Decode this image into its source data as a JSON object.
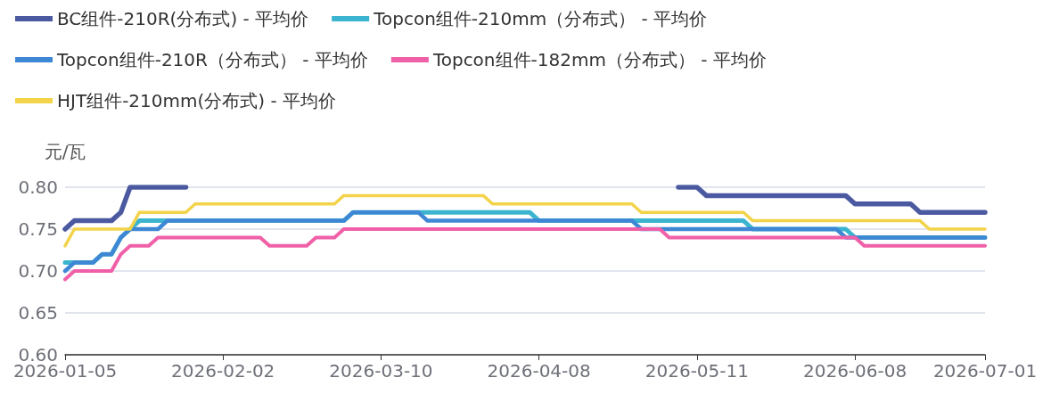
{
  "chart_data": {
    "type": "line",
    "ylabel": "元/瓦",
    "categories": [
      "2026-01-05",
      null,
      null,
      null,
      null,
      null,
      null,
      null,
      null,
      null,
      null,
      null,
      null,
      null,
      null,
      null,
      null,
      "2026-02-02",
      null,
      null,
      null,
      null,
      null,
      null,
      null,
      null,
      null,
      null,
      null,
      null,
      null,
      null,
      null,
      null,
      "2026-03-10",
      null,
      null,
      null,
      null,
      null,
      null,
      null,
      null,
      null,
      null,
      null,
      null,
      null,
      null,
      null,
      null,
      "2026-04-08",
      null,
      null,
      null,
      null,
      null,
      null,
      null,
      null,
      null,
      null,
      null,
      null,
      null,
      null,
      null,
      null,
      "2026-05-11",
      null,
      null,
      null,
      null,
      null,
      null,
      null,
      null,
      null,
      null,
      null,
      null,
      null,
      null,
      null,
      null,
      "2026-06-08",
      null,
      null,
      null,
      null,
      null,
      null,
      null,
      null,
      null,
      null,
      null,
      null,
      null,
      "2026-07-01"
    ],
    "series": [
      {
        "name": "BC组件-210R(分布式) - 平均价",
        "color": "#4b5aa0",
        "values": [
          0.75,
          0.76,
          0.76,
          0.76,
          0.76,
          0.76,
          0.77,
          0.8,
          0.8,
          0.8,
          0.8,
          0.8,
          0.8,
          0.8,
          null,
          null,
          null,
          null,
          null,
          null,
          null,
          null,
          null,
          null,
          null,
          null,
          null,
          null,
          null,
          null,
          null,
          null,
          null,
          null,
          null,
          null,
          null,
          null,
          null,
          null,
          null,
          null,
          null,
          null,
          null,
          null,
          null,
          null,
          null,
          null,
          null,
          null,
          null,
          null,
          null,
          null,
          null,
          null,
          null,
          null,
          null,
          null,
          null,
          null,
          null,
          null,
          0.8,
          0.8,
          0.8,
          0.79,
          0.79,
          0.79,
          0.79,
          0.79,
          0.79,
          0.79,
          0.79,
          0.79,
          0.79,
          0.79,
          0.79,
          0.79,
          0.79,
          0.79,
          0.79,
          0.78,
          0.78,
          0.78,
          0.78,
          0.78,
          0.78,
          0.78,
          0.77,
          0.77,
          0.77,
          0.77,
          0.77,
          0.77,
          0.77,
          0.77
        ]
      },
      {
        "name": "Topcon组件-210mm（分布式） - 平均价",
        "color": "#3bb4cf",
        "values": [
          0.71,
          0.71,
          0.71,
          0.71,
          0.72,
          0.72,
          0.74,
          0.75,
          0.76,
          0.76,
          0.76,
          0.76,
          0.76,
          0.76,
          0.76,
          0.76,
          0.76,
          0.76,
          0.76,
          0.76,
          0.76,
          0.76,
          0.76,
          0.76,
          0.76,
          0.76,
          0.76,
          0.76,
          0.76,
          0.76,
          0.76,
          0.77,
          0.77,
          0.77,
          0.77,
          0.77,
          0.77,
          0.77,
          0.77,
          0.77,
          0.77,
          0.77,
          0.77,
          0.77,
          0.77,
          0.77,
          0.77,
          0.77,
          0.77,
          0.77,
          0.77,
          0.76,
          0.76,
          0.76,
          0.76,
          0.76,
          0.76,
          0.76,
          0.76,
          0.76,
          0.76,
          0.76,
          0.76,
          0.76,
          0.76,
          0.76,
          0.76,
          0.76,
          0.76,
          0.76,
          0.76,
          0.76,
          0.76,
          0.76,
          0.75,
          0.75,
          0.75,
          0.75,
          0.75,
          0.75,
          0.75,
          0.75,
          0.75,
          0.75,
          0.75,
          0.74,
          0.74,
          0.74,
          0.74,
          0.74,
          0.74,
          0.74,
          0.74,
          0.74,
          0.74,
          0.74,
          0.74,
          0.74,
          0.74,
          0.74
        ]
      },
      {
        "name": "Topcon组件-210R（分布式） - 平均价",
        "color": "#3e87d4",
        "values": [
          0.7,
          0.71,
          0.71,
          0.71,
          0.72,
          0.72,
          0.74,
          0.75,
          0.75,
          0.75,
          0.75,
          0.76,
          0.76,
          0.76,
          0.76,
          0.76,
          0.76,
          0.76,
          0.76,
          0.76,
          0.76,
          0.76,
          0.76,
          0.76,
          0.76,
          0.76,
          0.76,
          0.76,
          0.76,
          0.76,
          0.76,
          0.77,
          0.77,
          0.77,
          0.77,
          0.77,
          0.77,
          0.77,
          0.77,
          0.76,
          0.76,
          0.76,
          0.76,
          0.76,
          0.76,
          0.76,
          0.76,
          0.76,
          0.76,
          0.76,
          0.76,
          0.76,
          0.76,
          0.76,
          0.76,
          0.76,
          0.76,
          0.76,
          0.76,
          0.76,
          0.76,
          0.76,
          0.75,
          0.75,
          0.75,
          0.75,
          0.75,
          0.75,
          0.75,
          0.75,
          0.75,
          0.75,
          0.75,
          0.75,
          0.75,
          0.75,
          0.75,
          0.75,
          0.75,
          0.75,
          0.75,
          0.75,
          0.75,
          0.75,
          0.74,
          0.74,
          0.74,
          0.74,
          0.74,
          0.74,
          0.74,
          0.74,
          0.74,
          0.74,
          0.74,
          0.74,
          0.74,
          0.74,
          0.74,
          0.74
        ]
      },
      {
        "name": "Topcon组件-182mm（分布式） - 平均价",
        "color": "#f060a8",
        "values": [
          0.69,
          0.7,
          0.7,
          0.7,
          0.7,
          0.7,
          0.72,
          0.73,
          0.73,
          0.73,
          0.74,
          0.74,
          0.74,
          0.74,
          0.74,
          0.74,
          0.74,
          0.74,
          0.74,
          0.74,
          0.74,
          0.74,
          0.73,
          0.73,
          0.73,
          0.73,
          0.73,
          0.74,
          0.74,
          0.74,
          0.75,
          0.75,
          0.75,
          0.75,
          0.75,
          0.75,
          0.75,
          0.75,
          0.75,
          0.75,
          0.75,
          0.75,
          0.75,
          0.75,
          0.75,
          0.75,
          0.75,
          0.75,
          0.75,
          0.75,
          0.75,
          0.75,
          0.75,
          0.75,
          0.75,
          0.75,
          0.75,
          0.75,
          0.75,
          0.75,
          0.75,
          0.75,
          0.75,
          0.75,
          0.75,
          0.74,
          0.74,
          0.74,
          0.74,
          0.74,
          0.74,
          0.74,
          0.74,
          0.74,
          0.74,
          0.74,
          0.74,
          0.74,
          0.74,
          0.74,
          0.74,
          0.74,
          0.74,
          0.74,
          0.74,
          0.74,
          0.73,
          0.73,
          0.73,
          0.73,
          0.73,
          0.73,
          0.73,
          0.73,
          0.73,
          0.73,
          0.73,
          0.73,
          0.73,
          0.73
        ]
      },
      {
        "name": "HJT组件-210mm(分布式) - 平均价",
        "color": "#f3d34a",
        "values": [
          0.73,
          0.75,
          0.75,
          0.75,
          0.75,
          0.75,
          0.75,
          0.75,
          0.77,
          0.77,
          0.77,
          0.77,
          0.77,
          0.77,
          0.78,
          0.78,
          0.78,
          0.78,
          0.78,
          0.78,
          0.78,
          0.78,
          0.78,
          0.78,
          0.78,
          0.78,
          0.78,
          0.78,
          0.78,
          0.78,
          0.79,
          0.79,
          0.79,
          0.79,
          0.79,
          0.79,
          0.79,
          0.79,
          0.79,
          0.79,
          0.79,
          0.79,
          0.79,
          0.79,
          0.79,
          0.79,
          0.78,
          0.78,
          0.78,
          0.78,
          0.78,
          0.78,
          0.78,
          0.78,
          0.78,
          0.78,
          0.78,
          0.78,
          0.78,
          0.78,
          0.78,
          0.78,
          0.77,
          0.77,
          0.77,
          0.77,
          0.77,
          0.77,
          0.77,
          0.77,
          0.77,
          0.77,
          0.77,
          0.77,
          0.76,
          0.76,
          0.76,
          0.76,
          0.76,
          0.76,
          0.76,
          0.76,
          0.76,
          0.76,
          0.76,
          0.76,
          0.76,
          0.76,
          0.76,
          0.76,
          0.76,
          0.76,
          0.76,
          0.75,
          0.75,
          0.75,
          0.75,
          0.75,
          0.75,
          0.75
        ]
      }
    ],
    "ylim": [
      0.6,
      0.8
    ],
    "yticks": [
      {
        "value": 0.6,
        "label": "0.60"
      },
      0.65,
      {
        "value": 0.7,
        "label": "0.70"
      },
      0.75,
      {
        "value": 0.8,
        "label": "0.80"
      }
    ],
    "grid": "y",
    "legend": "top left",
    "marker": "none",
    "line_style": "solid"
  }
}
